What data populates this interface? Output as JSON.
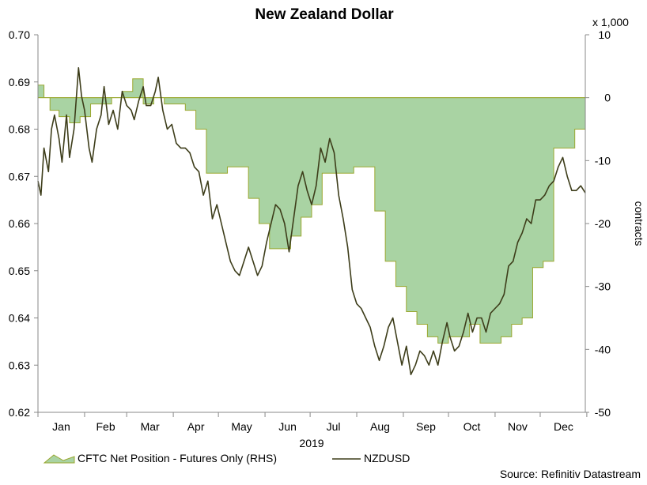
{
  "chart_data": {
    "type": "line",
    "title": "New Zealand Dollar",
    "x_axis_title": "2019",
    "x_tick_labels": [
      "Jan",
      "Feb",
      "Mar",
      "Apr",
      "May",
      "Jun",
      "Jul",
      "Aug",
      "Sep",
      "Oct",
      "Nov",
      "Dec"
    ],
    "left_axis": {
      "range": [
        0.62,
        0.7
      ],
      "ticks": [
        "0.70",
        "0.69",
        "0.68",
        "0.67",
        "0.66",
        "0.65",
        "0.64",
        "0.63",
        "0.62"
      ]
    },
    "right_axis": {
      "label": "contracts",
      "multiplier": "x 1,000",
      "range": [
        -50,
        10
      ],
      "ticks": [
        "10",
        "0",
        "-10",
        "-20",
        "-30",
        "-40",
        "-50"
      ]
    },
    "grid": false,
    "legend_position": "bottom",
    "source": "Source: Refinitiv Datastream",
    "series": [
      {
        "name": "CFTC Net Position - Futures Only (RHS)",
        "type": "area",
        "axis": "right",
        "color": "#a9d3a3",
        "x": [
          "2019-01-01",
          "2019-01-05",
          "2019-01-09",
          "2019-01-15",
          "2019-01-22",
          "2019-01-29",
          "2019-02-05",
          "2019-02-12",
          "2019-02-19",
          "2019-02-26",
          "2019-03-05",
          "2019-03-12",
          "2019-03-19",
          "2019-03-26",
          "2019-04-02",
          "2019-04-09",
          "2019-04-16",
          "2019-04-23",
          "2019-04-30",
          "2019-05-07",
          "2019-05-14",
          "2019-05-21",
          "2019-05-28",
          "2019-06-04",
          "2019-06-11",
          "2019-06-18",
          "2019-06-25",
          "2019-07-02",
          "2019-07-09",
          "2019-07-16",
          "2019-07-23",
          "2019-07-30",
          "2019-08-06",
          "2019-08-13",
          "2019-08-20",
          "2019-08-27",
          "2019-09-03",
          "2019-09-10",
          "2019-09-17",
          "2019-09-24",
          "2019-10-01",
          "2019-10-08",
          "2019-10-15",
          "2019-10-22",
          "2019-10-29",
          "2019-11-05",
          "2019-11-12",
          "2019-11-19",
          "2019-11-26",
          "2019-12-03",
          "2019-12-10",
          "2019-12-17",
          "2019-12-24",
          "2019-12-31"
        ],
        "values": [
          2,
          0,
          -2,
          -3,
          -4,
          -3,
          -1,
          -1,
          0,
          1,
          3,
          -1,
          0,
          -1,
          -1,
          -2,
          -5,
          -12,
          -12,
          -11,
          -11,
          -16,
          -20,
          -24,
          -24,
          -22,
          -19,
          -17,
          -12,
          -12,
          -12,
          -11,
          -11,
          -18,
          -26,
          -30,
          -34,
          -36,
          -38,
          -39,
          -38,
          -38,
          -36,
          -39,
          -39,
          -38,
          -36,
          -35,
          -27,
          -26,
          -8,
          -8,
          -5,
          -4
        ]
      },
      {
        "name": "NZDUSD",
        "type": "line",
        "axis": "left",
        "color": "#3d3d1a",
        "x": [
          "2019-01-01",
          "2019-01-03",
          "2019-01-05",
          "2019-01-08",
          "2019-01-10",
          "2019-01-12",
          "2019-01-15",
          "2019-01-17",
          "2019-01-20",
          "2019-01-22",
          "2019-01-25",
          "2019-01-28",
          "2019-01-30",
          "2019-02-01",
          "2019-02-04",
          "2019-02-06",
          "2019-02-09",
          "2019-02-12",
          "2019-02-14",
          "2019-02-17",
          "2019-02-20",
          "2019-02-23",
          "2019-02-26",
          "2019-03-01",
          "2019-03-04",
          "2019-03-06",
          "2019-03-09",
          "2019-03-12",
          "2019-03-14",
          "2019-03-17",
          "2019-03-20",
          "2019-03-22",
          "2019-03-25",
          "2019-03-28",
          "2019-03-31",
          "2019-04-03",
          "2019-04-06",
          "2019-04-09",
          "2019-04-12",
          "2019-04-15",
          "2019-04-18",
          "2019-04-21",
          "2019-04-24",
          "2019-04-27",
          "2019-04-30",
          "2019-05-03",
          "2019-05-06",
          "2019-05-09",
          "2019-05-12",
          "2019-05-15",
          "2019-05-18",
          "2019-05-21",
          "2019-05-24",
          "2019-05-27",
          "2019-05-30",
          "2019-06-02",
          "2019-06-05",
          "2019-06-08",
          "2019-06-11",
          "2019-06-14",
          "2019-06-17",
          "2019-06-20",
          "2019-06-23",
          "2019-06-26",
          "2019-06-29",
          "2019-07-02",
          "2019-07-05",
          "2019-07-08",
          "2019-07-11",
          "2019-07-14",
          "2019-07-17",
          "2019-07-20",
          "2019-07-23",
          "2019-07-26",
          "2019-07-29",
          "2019-08-01",
          "2019-08-04",
          "2019-08-07",
          "2019-08-10",
          "2019-08-13",
          "2019-08-16",
          "2019-08-19",
          "2019-08-22",
          "2019-08-25",
          "2019-08-28",
          "2019-08-31",
          "2019-09-03",
          "2019-09-06",
          "2019-09-09",
          "2019-09-12",
          "2019-09-15",
          "2019-09-18",
          "2019-09-21",
          "2019-09-24",
          "2019-09-27",
          "2019-09-30",
          "2019-10-02",
          "2019-10-05",
          "2019-10-08",
          "2019-10-11",
          "2019-10-14",
          "2019-10-17",
          "2019-10-20",
          "2019-10-23",
          "2019-10-26",
          "2019-10-29",
          "2019-11-01",
          "2019-11-04",
          "2019-11-07",
          "2019-11-10",
          "2019-11-13",
          "2019-11-16",
          "2019-11-19",
          "2019-11-22",
          "2019-11-25",
          "2019-11-28",
          "2019-12-01",
          "2019-12-04",
          "2019-12-07",
          "2019-12-10",
          "2019-12-13",
          "2019-12-16",
          "2019-12-19",
          "2019-12-22",
          "2019-12-25",
          "2019-12-28",
          "2019-12-31"
        ],
        "values": [
          0.669,
          0.666,
          0.676,
          0.671,
          0.68,
          0.683,
          0.678,
          0.673,
          0.683,
          0.674,
          0.68,
          0.693,
          0.687,
          0.684,
          0.676,
          0.673,
          0.68,
          0.683,
          0.689,
          0.681,
          0.684,
          0.68,
          0.688,
          0.685,
          0.684,
          0.682,
          0.686,
          0.689,
          0.685,
          0.685,
          0.688,
          0.691,
          0.684,
          0.68,
          0.681,
          0.677,
          0.676,
          0.676,
          0.675,
          0.672,
          0.671,
          0.666,
          0.669,
          0.661,
          0.664,
          0.66,
          0.656,
          0.652,
          0.65,
          0.649,
          0.652,
          0.655,
          0.652,
          0.649,
          0.651,
          0.656,
          0.66,
          0.664,
          0.663,
          0.66,
          0.654,
          0.661,
          0.668,
          0.671,
          0.667,
          0.664,
          0.668,
          0.676,
          0.673,
          0.678,
          0.675,
          0.666,
          0.661,
          0.655,
          0.646,
          0.643,
          0.642,
          0.64,
          0.638,
          0.634,
          0.631,
          0.634,
          0.638,
          0.64,
          0.635,
          0.63,
          0.634,
          0.628,
          0.63,
          0.633,
          0.632,
          0.63,
          0.633,
          0.63,
          0.635,
          0.639,
          0.636,
          0.633,
          0.634,
          0.637,
          0.641,
          0.637,
          0.64,
          0.64,
          0.637,
          0.641,
          0.642,
          0.643,
          0.645,
          0.651,
          0.652,
          0.656,
          0.658,
          0.661,
          0.66,
          0.665,
          0.665,
          0.666,
          0.668,
          0.669,
          0.672,
          0.674,
          0.67,
          0.667,
          0.667,
          0.668,
          0.6665
        ]
      }
    ]
  }
}
